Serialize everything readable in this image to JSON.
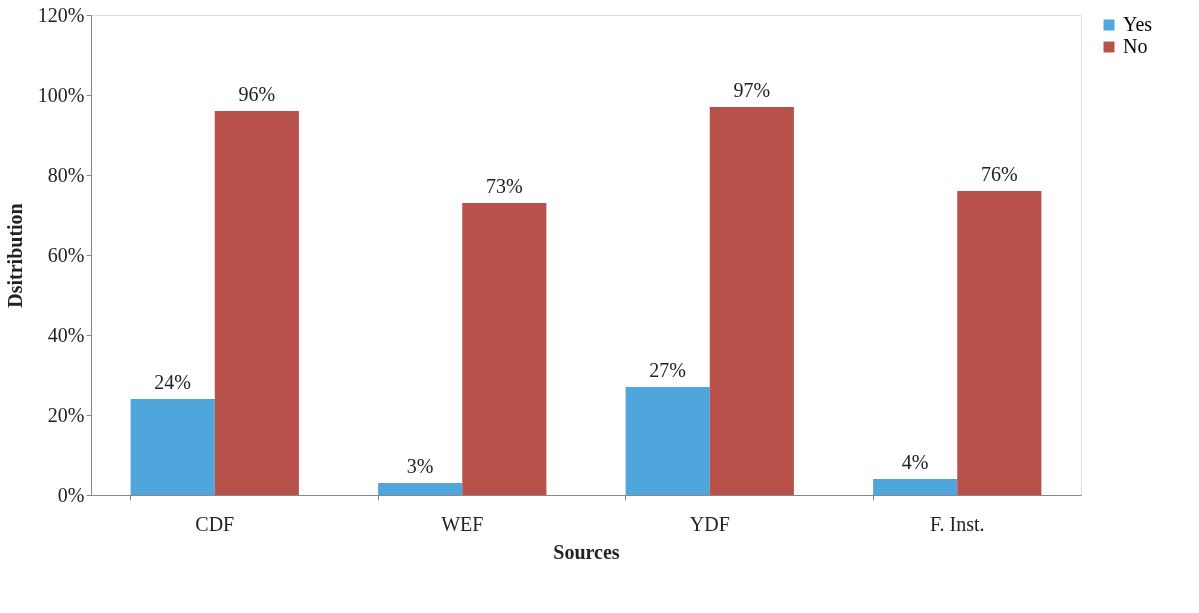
{
  "chart_data": {
    "type": "bar",
    "xlabel": "Sources",
    "ylabel": "Dsitribution",
    "categories": [
      "CDF",
      "WEF",
      "YDF",
      "F. Inst."
    ],
    "series": [
      {
        "name": "Yes",
        "color": "#4ea6dc",
        "values": [
          24,
          3,
          27,
          4
        ]
      },
      {
        "name": "No",
        "color": "#b8514a",
        "values": [
          96,
          73,
          97,
          76
        ]
      }
    ],
    "ylim": [
      0,
      120
    ],
    "yticks": [
      {
        "value": 0,
        "label": "0%"
      },
      {
        "value": 20,
        "label": "20%"
      },
      {
        "value": 40,
        "label": "40%"
      },
      {
        "value": 60,
        "label": "60%"
      },
      {
        "value": 80,
        "label": "80%"
      },
      {
        "value": 100,
        "label": "100%"
      },
      {
        "value": 120,
        "label": "120%"
      }
    ],
    "value_labels": [
      [
        "24%",
        "3%",
        "27%",
        "4%"
      ],
      [
        "96%",
        "73%",
        "97%",
        "76%"
      ]
    ],
    "grid": false,
    "legend": "top right"
  }
}
